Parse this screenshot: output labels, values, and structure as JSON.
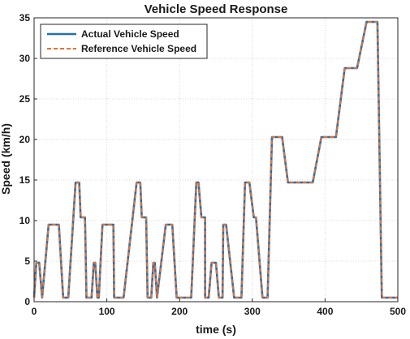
{
  "chart_data": {
    "type": "line",
    "title": "Vehicle Speed Response",
    "xlabel": "time (s)",
    "ylabel": "Speed (km/h)",
    "xlim": [
      0,
      500
    ],
    "ylim": [
      0,
      35
    ],
    "xticks": [
      0,
      100,
      200,
      300,
      400,
      500
    ],
    "yticks": [
      0,
      5,
      10,
      15,
      20,
      25,
      30,
      35
    ],
    "grid": true,
    "legend_position": "top-left",
    "series": [
      {
        "name": "Actual Vehicle Speed",
        "color": "#1f6fb5",
        "style": "solid",
        "x": [
          0,
          3,
          7,
          11,
          11,
          20,
          23,
          30,
          34,
          40,
          40,
          47,
          57,
          62,
          64,
          70,
          72,
          79,
          79,
          82,
          84,
          87,
          87,
          89,
          94,
          101,
          109,
          110,
          116,
          118,
          123,
          141,
          146,
          148,
          154,
          156,
          161,
          161,
          164,
          166,
          169,
          169,
          181,
          190,
          196,
          200,
          206,
          216,
          223,
          226,
          230,
          235,
          235,
          240,
          240,
          244,
          250,
          254,
          256,
          259,
          260,
          264,
          275,
          285,
          290,
          296,
          302,
          305,
          314,
          318,
          321,
          327,
          334,
          334,
          341,
          349,
          362,
          375,
          383,
          395,
          410,
          415,
          427,
          431,
          444,
          457,
          472,
          478,
          482,
          498,
          500
        ],
        "y": [
          0.5,
          4.8,
          4.8,
          0.5,
          0.5,
          9.5,
          9.5,
          9.5,
          9.5,
          0.5,
          0.5,
          0.5,
          14.7,
          14.7,
          10.4,
          10.4,
          0.5,
          0.5,
          0.5,
          4.8,
          4.8,
          0.5,
          0.5,
          0.5,
          9.5,
          9.5,
          9.5,
          0.5,
          0.5,
          0.5,
          0.5,
          14.7,
          14.7,
          10.4,
          10.4,
          0.5,
          0.5,
          0.5,
          4.8,
          4.8,
          0.5,
          0.5,
          9.5,
          9.5,
          0.5,
          0.5,
          0.5,
          0.5,
          14.7,
          14.7,
          10.4,
          10.4,
          0.5,
          0.5,
          0.5,
          4.8,
          4.8,
          0.5,
          0.5,
          0.5,
          9.5,
          9.5,
          0.5,
          0.5,
          14.7,
          14.7,
          10.4,
          10.4,
          0.5,
          0.5,
          0.5,
          20.3,
          20.3,
          20.3,
          20.3,
          14.7,
          14.7,
          14.7,
          14.7,
          20.3,
          20.3,
          20.3,
          28.8,
          28.8,
          28.8,
          34.5,
          34.5,
          0.5,
          0.5,
          0.5,
          0.5
        ]
      },
      {
        "name": "Reference Vehicle Speed",
        "color": "#e8702a",
        "style": "dashed",
        "x": [
          0,
          3,
          7,
          11,
          11,
          20,
          23,
          30,
          34,
          40,
          40,
          47,
          57,
          62,
          64,
          70,
          72,
          79,
          79,
          82,
          84,
          87,
          87,
          89,
          94,
          101,
          109,
          110,
          116,
          118,
          123,
          141,
          146,
          148,
          154,
          156,
          161,
          161,
          164,
          166,
          169,
          169,
          181,
          190,
          196,
          200,
          206,
          216,
          223,
          226,
          230,
          235,
          235,
          240,
          240,
          244,
          250,
          254,
          256,
          259,
          260,
          264,
          275,
          285,
          290,
          296,
          302,
          305,
          314,
          318,
          321,
          327,
          334,
          334,
          341,
          349,
          362,
          375,
          383,
          395,
          410,
          415,
          427,
          431,
          444,
          457,
          472,
          478,
          482,
          498,
          500
        ],
        "y": [
          0.5,
          4.8,
          4.8,
          0.5,
          0.5,
          9.5,
          9.5,
          9.5,
          9.5,
          0.5,
          0.5,
          0.5,
          14.7,
          14.7,
          10.4,
          10.4,
          0.5,
          0.5,
          0.5,
          4.8,
          4.8,
          0.5,
          0.5,
          0.5,
          9.5,
          9.5,
          9.5,
          0.5,
          0.5,
          0.5,
          0.5,
          14.7,
          14.7,
          10.4,
          10.4,
          0.5,
          0.5,
          0.5,
          4.8,
          4.8,
          0.5,
          0.5,
          9.5,
          9.5,
          0.5,
          0.5,
          0.5,
          0.5,
          14.7,
          14.7,
          10.4,
          10.4,
          0.5,
          0.5,
          0.5,
          4.8,
          4.8,
          0.5,
          0.5,
          0.5,
          9.5,
          9.5,
          0.5,
          0.5,
          14.7,
          14.7,
          10.4,
          10.4,
          0.5,
          0.5,
          0.5,
          20.3,
          20.3,
          20.3,
          20.3,
          14.7,
          14.7,
          14.7,
          14.7,
          20.3,
          20.3,
          20.3,
          28.8,
          28.8,
          28.8,
          34.5,
          34.5,
          0.5,
          0.5,
          0.5,
          0.5
        ]
      }
    ]
  }
}
